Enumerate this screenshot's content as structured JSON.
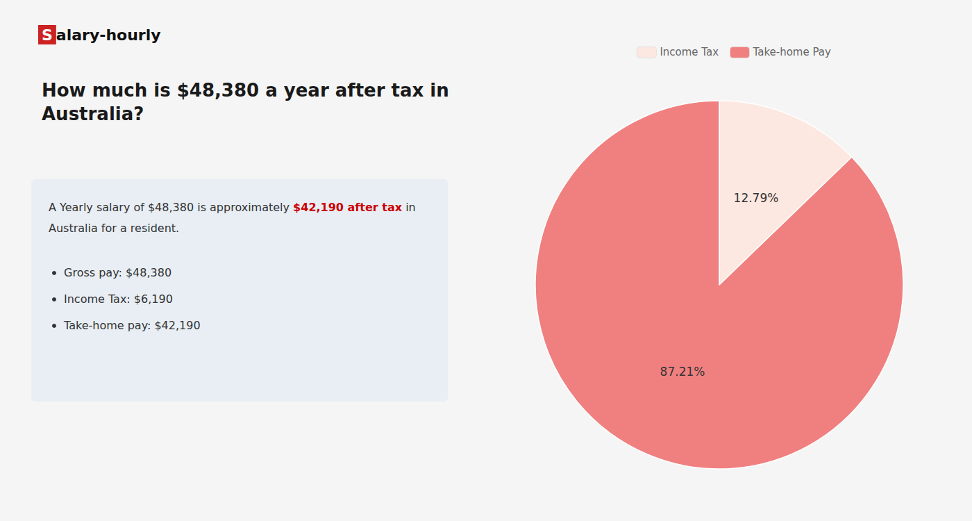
{
  "chart_data": {
    "type": "pie",
    "title": "How much is $48,380 a year after tax in\nAustralia?",
    "categories": [
      "Income Tax",
      "Take-home Pay"
    ],
    "values": [
      12.79,
      87.21
    ],
    "value_labels": [
      "12.79%",
      "87.21%"
    ],
    "colors": [
      "#fce8e0",
      "#f08080"
    ],
    "data_labels": true,
    "legend": "top",
    "logo": [
      {
        "text": "S",
        "color": "#ffffff",
        "background": "#cc2222"
      },
      {
        "text": "alary-hourly",
        "color": "#111111"
      }
    ],
    "notes": [
      [
        {
          "text": "A Yearly salary of $48,380 is approximately ",
          "color": "#333333"
        },
        {
          "text": "$42,190 after tax",
          "color": "#cc0000",
          "bold": true
        },
        {
          "text": " in",
          "color": "#333333"
        }
      ],
      [
        {
          "text": "Australia for a resident.",
          "color": "#333333"
        }
      ]
    ],
    "bullets": [
      "Gross pay: $48,380",
      "Income Tax: $6,190",
      "Take-home pay: $42,190"
    ],
    "note_background": "#e8eef4",
    "background_color": "#f5f5f5"
  }
}
